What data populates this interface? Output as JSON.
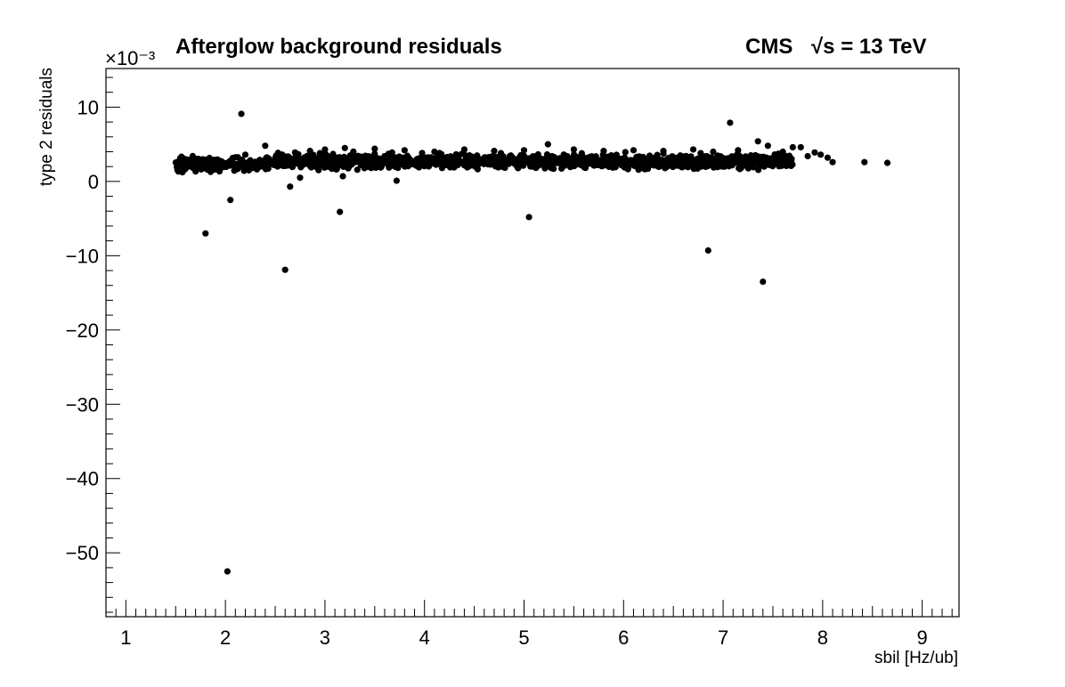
{
  "chart_data": {
    "type": "scatter",
    "title": "Afterglow background residuals",
    "experiment_label": "CMS",
    "energy_label": "√s = 13 TeV",
    "xlabel": "sbil [Hz/ub]",
    "ylabel": "type 2 residuals",
    "y_multiplier_label": "×10⁻³",
    "xlim": [
      0.8,
      9.37
    ],
    "ylim": [
      -58.6,
      15.2
    ],
    "x_ticks": [
      1,
      2,
      3,
      4,
      5,
      6,
      7,
      8,
      9
    ],
    "y_ticks": [
      10,
      0,
      -10,
      -20,
      -30,
      -40,
      -50
    ],
    "y_units": "×10⁻³",
    "grid": false,
    "band": {
      "description": "dense cluster of points",
      "x_range": [
        1.5,
        8.1
      ],
      "y_center": 2.7,
      "y_spread": 1.0,
      "approx_points": 1500
    },
    "band_points": [
      [
        1.52,
        2.1
      ],
      [
        1.6,
        2.5
      ],
      [
        1.7,
        3.0
      ],
      [
        1.8,
        2.8
      ],
      [
        1.88,
        2.3
      ],
      [
        1.97,
        2.6
      ],
      [
        2.2,
        3.6
      ],
      [
        2.4,
        4.8
      ],
      [
        2.55,
        3.2
      ],
      [
        2.7,
        3.9
      ],
      [
        2.85,
        4.1
      ],
      [
        3.0,
        4.3
      ],
      [
        3.2,
        4.5
      ],
      [
        3.5,
        4.4
      ],
      [
        3.8,
        4.2
      ],
      [
        4.1,
        4.0
      ],
      [
        4.4,
        4.3
      ],
      [
        4.7,
        4.1
      ],
      [
        5.0,
        4.2
      ],
      [
        5.24,
        5.0
      ],
      [
        5.5,
        4.3
      ],
      [
        5.8,
        4.1
      ],
      [
        6.1,
        4.2
      ],
      [
        6.4,
        4.1
      ],
      [
        6.7,
        4.3
      ],
      [
        6.9,
        4.0
      ],
      [
        7.15,
        4.2
      ],
      [
        7.35,
        5.4
      ],
      [
        7.45,
        4.8
      ],
      [
        7.6,
        4.0
      ],
      [
        7.7,
        4.6
      ],
      [
        7.78,
        4.6
      ],
      [
        7.85,
        3.4
      ],
      [
        7.92,
        3.9
      ],
      [
        7.98,
        3.6
      ],
      [
        8.05,
        3.2
      ],
      [
        8.1,
        2.6
      ],
      [
        8.42,
        2.6
      ],
      [
        8.65,
        2.5
      ]
    ],
    "outliers": [
      [
        1.8,
        -7.0
      ],
      [
        2.02,
        -52.5
      ],
      [
        2.05,
        -2.5
      ],
      [
        2.16,
        9.1
      ],
      [
        2.6,
        -11.9
      ],
      [
        2.65,
        -0.7
      ],
      [
        2.75,
        0.5
      ],
      [
        3.15,
        -4.1
      ],
      [
        3.18,
        0.7
      ],
      [
        3.72,
        0.1
      ],
      [
        5.05,
        -4.8
      ],
      [
        6.85,
        -9.3
      ],
      [
        7.07,
        7.9
      ],
      [
        7.4,
        -13.5
      ]
    ]
  }
}
